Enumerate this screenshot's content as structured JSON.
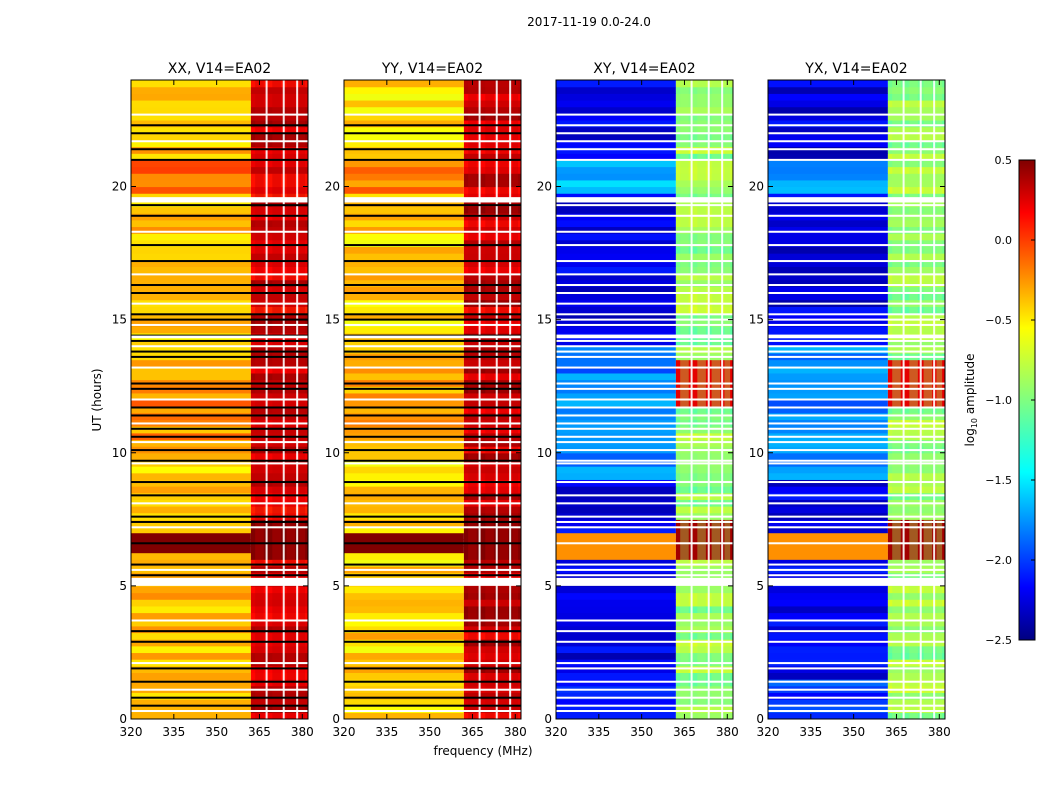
{
  "figure_title": "2017-11-19 0.0-24.0",
  "chart_data": {
    "type": "heatmap",
    "title": "2017-11-19 0.0-24.0",
    "xlabel": "frequency (MHz)",
    "ylabel": "UT (hours)",
    "xlim": [
      320,
      382
    ],
    "ylim": [
      0,
      24
    ],
    "xticks": [
      320,
      335,
      350,
      365,
      380
    ],
    "yticks": [
      0,
      5,
      10,
      15,
      20
    ],
    "panels": [
      {
        "title": "XX, V14=EA02",
        "kind": "parallel",
        "base_level": -0.45,
        "rfi_level": 0.15
      },
      {
        "title": "YY, V14=EA02",
        "kind": "parallel",
        "base_level": -0.5,
        "rfi_level": 0.2
      },
      {
        "title": "XY, V14=EA02",
        "kind": "cross",
        "base_level": -2.2,
        "rfi_level": -1.0
      },
      {
        "title": "YX, V14=EA02",
        "kind": "cross",
        "base_level": -2.2,
        "rfi_level": -1.0
      }
    ],
    "colorbar": {
      "label": "log10 amplitude",
      "label_main": "log",
      "label_sub": "10",
      "label_tail": " amplitude",
      "min": -2.5,
      "max": 0.5,
      "ticks": [
        0.5,
        0.0,
        -0.5,
        -1.0,
        -1.5,
        -2.0,
        -2.5
      ],
      "tick_labels": [
        "0.5",
        "0.0",
        "−0.5",
        "−1.0",
        "−1.5",
        "−2.0",
        "−2.5"
      ],
      "colormap": "jet"
    },
    "rfi_bands_mhz": [
      [
        363.5,
        366.5
      ],
      [
        369.5,
        372.5
      ],
      [
        374.5,
        377.5
      ],
      [
        379,
        381
      ]
    ],
    "band_gap_lines_mhz": [
      367.5,
      373.5,
      378.2
    ],
    "flagged_rows_ut": [
      0.3,
      0.5,
      0.8,
      1.1,
      1.4,
      1.9,
      2.1,
      2.9,
      3.3,
      3.7,
      5.2,
      5.4,
      5.6,
      5.8,
      6.6,
      7.2,
      7.4,
      7.6,
      8.1,
      8.4,
      8.9,
      9.6,
      9.7,
      10.1,
      10.4,
      10.6,
      10.9,
      11.1,
      11.4,
      11.7,
      12.0,
      12.4,
      12.6,
      13.2,
      13.6,
      13.8,
      14.0,
      14.2,
      14.4,
      14.8,
      15.0,
      15.2,
      15.6,
      16.0,
      16.3,
      16.7,
      17.2,
      17.8,
      18.3,
      18.9,
      19.3,
      19.5,
      21.0,
      21.4,
      21.7,
      22.0,
      22.3,
      22.7
    ]
  }
}
